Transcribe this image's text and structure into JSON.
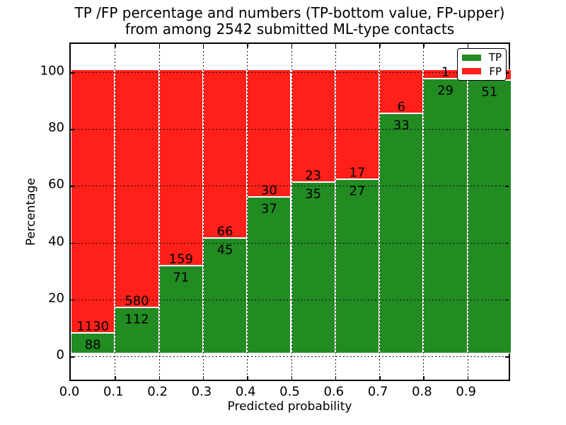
{
  "title": {
    "line1": "TP /FP percentage and numbers (TP-bottom value, FP-upper)",
    "line2": "from among 2542 submitted ML-type contacts"
  },
  "axes": {
    "x_label": "Predicted probability",
    "y_label": "Percentage",
    "x_ticks": [
      "0.0",
      "0.1",
      "0.2",
      "0.3",
      "0.4",
      "0.5",
      "0.6",
      "0.7",
      "0.8",
      "0.9"
    ],
    "y_ticks": [
      "0",
      "20",
      "40",
      "60",
      "80",
      "100"
    ]
  },
  "legend": {
    "items": [
      {
        "label": "TP",
        "color": "#228b22"
      },
      {
        "label": "FP",
        "color": "#ff2019"
      }
    ]
  },
  "colors": {
    "tp_green": "#228b22",
    "fp_red": "#ff2019",
    "grid": "#000000"
  },
  "chart_data": {
    "type": "bar",
    "stacked": true,
    "normalized_to_percent": true,
    "title": "TP /FP percentage and numbers (TP-bottom value, FP-upper) from among 2542 submitted ML-type contacts",
    "xlabel": "Predicted probability",
    "ylabel": "Percentage",
    "xlim": [
      0.0,
      1.0
    ],
    "ylim": [
      0,
      100
    ],
    "bin_width": 0.1,
    "grid": true,
    "legend_position": "upper right",
    "categories": [
      "0.0-0.1",
      "0.1-0.2",
      "0.2-0.3",
      "0.3-0.4",
      "0.4-0.5",
      "0.5-0.6",
      "0.6-0.7",
      "0.7-0.8",
      "0.8-0.9",
      "0.9-1.0"
    ],
    "series": [
      {
        "name": "TP",
        "values": [
          88,
          112,
          71,
          45,
          37,
          35,
          27,
          33,
          29,
          51
        ]
      },
      {
        "name": "FP",
        "values": [
          1130,
          580,
          159,
          66,
          30,
          23,
          17,
          6,
          1,
          null
        ]
      }
    ],
    "tp_percent_of_bin": [
      7.2,
      16.2,
      30.9,
      40.5,
      55.2,
      60.3,
      61.4,
      84.6,
      96.7,
      96.2
    ]
  }
}
